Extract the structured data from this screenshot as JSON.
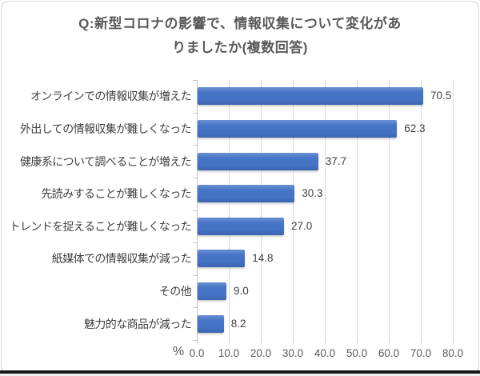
{
  "title_lines": [
    "Q:新型コロナの影響で、情報収集について変化があ",
    "りましたか(複数回答)"
  ],
  "chart_data": {
    "type": "bar",
    "orientation": "horizontal",
    "title": "Q:新型コロナの影響で、情報収集について変化がありましたか(複数回答)",
    "categories": [
      "オンラインでの情報収集が増えた",
      "外出しての情報収集が難しくなった",
      "健康系について調べることが増えた",
      "先読みすることが難しくなった",
      "トレンドを捉えることが難しくなった",
      "紙媒体での情報収集が減った",
      "その他",
      "魅力的な商品が減った"
    ],
    "values": [
      70.5,
      62.3,
      37.7,
      30.3,
      27.0,
      14.8,
      9.0,
      8.2
    ],
    "value_labels": [
      "70.5",
      "62.3",
      "37.7",
      "30.3",
      "27.0",
      "14.8",
      "9.0",
      "8.2"
    ],
    "xlabel": "%",
    "x_ticks": [
      "0.0",
      "10.0",
      "20.0",
      "30.0",
      "40.0",
      "50.0",
      "60.0",
      "70.0",
      "80.0"
    ],
    "x_tick_values": [
      0,
      10,
      20,
      30,
      40,
      50,
      60,
      70,
      80
    ],
    "xlim": [
      0,
      80
    ],
    "grid": true,
    "legend": false,
    "bar_color": "#4472C4",
    "gridline_color": "#D9D9D9",
    "text_color": "#404040",
    "title_color": "#595959"
  }
}
